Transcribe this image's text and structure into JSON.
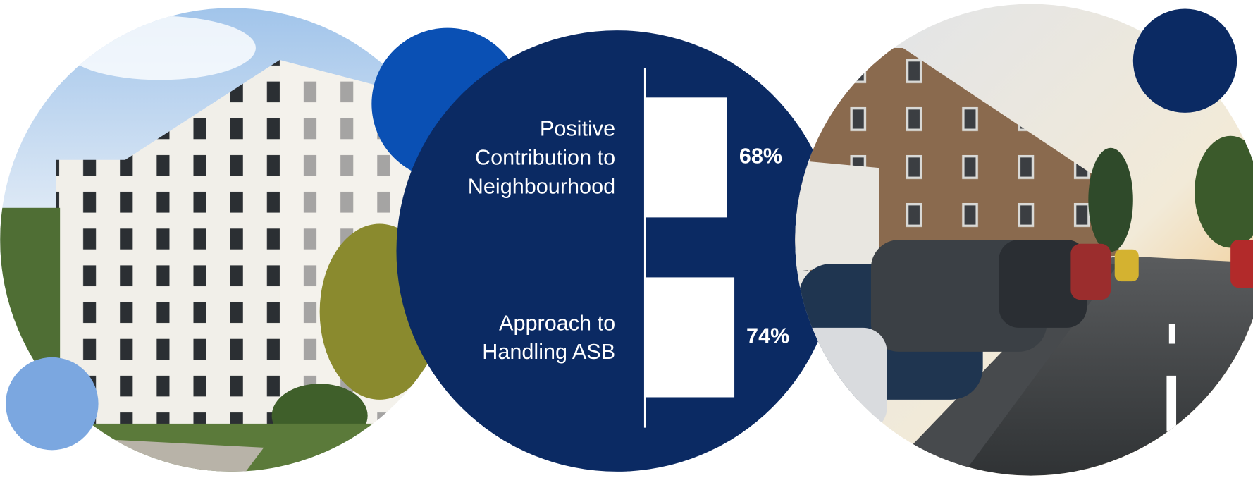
{
  "chart_data": {
    "type": "bar",
    "categories": [
      "Positive Contribution to Neighbourhood",
      "Approach to Handling ASB"
    ],
    "values": [
      68,
      74
    ],
    "value_labels": [
      "68%",
      "74%"
    ],
    "color": "#ffffff"
  }
}
